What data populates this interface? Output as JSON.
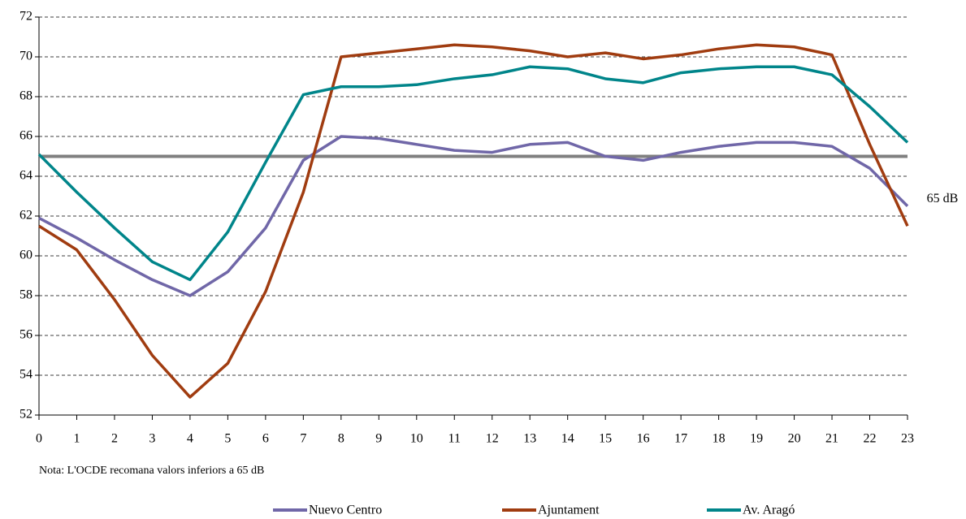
{
  "chart_data": {
    "type": "line",
    "x": [
      0,
      1,
      2,
      3,
      4,
      5,
      6,
      7,
      8,
      9,
      10,
      11,
      12,
      13,
      14,
      15,
      16,
      17,
      18,
      19,
      20,
      21,
      22,
      23
    ],
    "series": [
      {
        "name": "Nuevo Centro",
        "color": "#7067a8",
        "values": [
          61.9,
          60.9,
          59.8,
          58.8,
          58.0,
          59.2,
          61.4,
          64.8,
          66.0,
          65.9,
          65.6,
          65.3,
          65.2,
          65.6,
          65.7,
          65.0,
          64.8,
          65.2,
          65.5,
          65.7,
          65.7,
          65.5,
          64.4,
          62.5
        ]
      },
      {
        "name": "Ajuntament",
        "color": "#a03c10",
        "values": [
          61.5,
          60.3,
          57.8,
          55.0,
          52.9,
          54.6,
          58.2,
          63.2,
          70.0,
          70.2,
          70.4,
          70.6,
          70.5,
          70.3,
          70.0,
          70.2,
          69.9,
          70.1,
          70.4,
          70.6,
          70.5,
          70.1,
          65.6,
          61.5
        ]
      },
      {
        "name": "Av. Aragó",
        "color": "#00858a",
        "values": [
          65.1,
          63.2,
          61.4,
          59.7,
          58.8,
          61.2,
          64.7,
          68.1,
          68.5,
          68.5,
          68.6,
          68.9,
          69.1,
          69.5,
          69.4,
          68.9,
          68.7,
          69.2,
          69.4,
          69.5,
          69.5,
          69.1,
          67.5,
          65.7
        ]
      }
    ],
    "reference_line": {
      "value": 65,
      "label": "65 dB",
      "color": "#808080"
    },
    "note": "Nota: L'OCDE recomana valors inferiors a 65 dB",
    "xlim": [
      0,
      23
    ],
    "xticks": [
      0,
      1,
      2,
      3,
      4,
      5,
      6,
      7,
      8,
      9,
      10,
      11,
      12,
      13,
      14,
      15,
      16,
      17,
      18,
      19,
      20,
      21,
      22,
      23
    ],
    "ylim": [
      52,
      72
    ],
    "yticks": [
      52,
      54,
      56,
      58,
      60,
      62,
      64,
      66,
      68,
      70,
      72
    ],
    "grid": true,
    "legend": "bottom"
  }
}
